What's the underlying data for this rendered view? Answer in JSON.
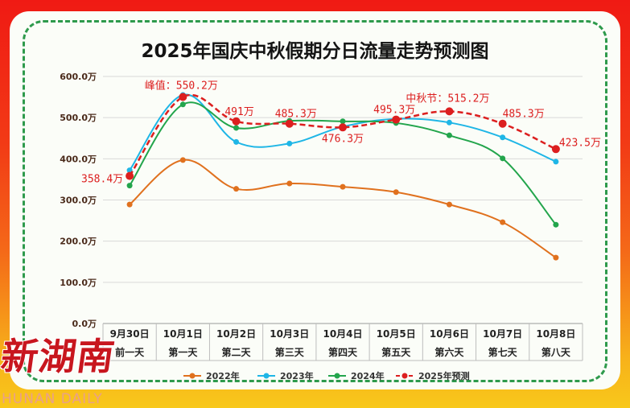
{
  "chart_data": {
    "type": "line",
    "title": "2025年国庆中秋假期分日流量走势预测图",
    "y_unit": "万",
    "ylim": [
      0,
      600
    ],
    "y_ticks": [
      "0.0万",
      "100.0万",
      "200.0万",
      "300.0万",
      "400.0万",
      "500.0万",
      "600.0万"
    ],
    "y_tick_values": [
      0,
      100,
      200,
      300,
      400,
      500,
      600
    ],
    "categories": [
      {
        "date": "9月30日",
        "day": "前一天"
      },
      {
        "date": "10月1日",
        "day": "第一天"
      },
      {
        "date": "10月2日",
        "day": "第二天"
      },
      {
        "date": "10月3日",
        "day": "第三天"
      },
      {
        "date": "10月4日",
        "day": "第四天"
      },
      {
        "date": "10月5日",
        "day": "第五天"
      },
      {
        "date": "10月6日",
        "day": "第六天"
      },
      {
        "date": "10月7日",
        "day": "第七天"
      },
      {
        "date": "10月8日",
        "day": "第八天"
      }
    ],
    "series": [
      {
        "name": "2022年",
        "color": "#e0711e",
        "dashed": false,
        "values": [
          289,
          397,
          327,
          340,
          332,
          319,
          289,
          246,
          160
        ]
      },
      {
        "name": "2023年",
        "color": "#1fb6e6",
        "dashed": false,
        "values": [
          372,
          555,
          441,
          437,
          478,
          497,
          488,
          452,
          393
        ]
      },
      {
        "name": "2024年",
        "color": "#23a54c",
        "dashed": false,
        "values": [
          335,
          532,
          475,
          492,
          491,
          487,
          457,
          401,
          240
        ]
      },
      {
        "name": "2025年预测",
        "color": "#dc1f1f",
        "dashed": true,
        "values": [
          358.4,
          550.2,
          491,
          485.3,
          476.3,
          495.3,
          515.2,
          485.3,
          423.5
        ]
      }
    ],
    "data_labels": [
      {
        "series": "2025年预测",
        "index": 0,
        "text": "358.4万"
      },
      {
        "series": "2025年预测",
        "index": 1,
        "text": "峰值：550.2万"
      },
      {
        "series": "2025年预测",
        "index": 2,
        "text": "491万"
      },
      {
        "series": "2025年预测",
        "index": 3,
        "text": "485.3万"
      },
      {
        "series": "2025年预测",
        "index": 4,
        "text": "476.3万"
      },
      {
        "series": "2025年预测",
        "index": 5,
        "text": "495.3万"
      },
      {
        "series": "2025年预测",
        "index": 6,
        "text": "中秋节：515.2万"
      },
      {
        "series": "2025年预测",
        "index": 7,
        "text": "485.3万"
      },
      {
        "series": "2025年预测",
        "index": 8,
        "text": "423.5万"
      }
    ],
    "legend_position": "bottom"
  },
  "watermark": {
    "logo_text": "新湖南",
    "sub_text": "HUNAN DAILY"
  }
}
